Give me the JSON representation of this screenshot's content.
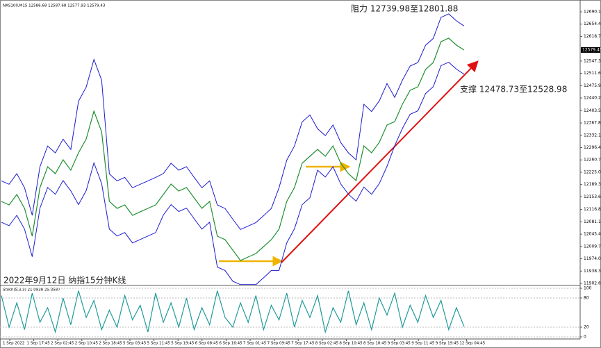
{
  "chart_data": [
    {
      "type": "line",
      "header": "NAS100,M15  12586.68 12587.68 12577.93 12579.43",
      "annotations": [
        "阻力 12739.98至12801.88",
        "支撑 12478.73至12528.98",
        "2022年9月12日 纳指15分钟K线"
      ],
      "ylim": [
        11898.6,
        12714.3
      ],
      "yticks": [
        12690.15,
        12654.45,
        12618.75,
        12547.35,
        12511.65,
        12475.95,
        12440.25,
        12403.55,
        12367.85,
        {
          "value": 12332.1,
          "label": "12332.10"
        },
        {
          "value": 12296.4,
          "label": "12296.40"
        },
        {
          "value": 12260.7,
          "label": "12260.70"
        },
        {
          "value": 12225,
          "label": "12225.00"
        },
        {
          "value": 12189.3,
          "label": "12189.30"
        },
        {
          "value": 12153.6,
          "label": "12153.60"
        },
        12116.85,
        12081.15,
        12045.45,
        12009.75,
        11974.05,
        11938.35,
        11902.65
      ],
      "last_price": 12579.43,
      "series": [
        {
          "color": "#1f8f2f",
          "values": [
            12140.3,
            12130.3,
            12160.5,
            12120.2,
            12039.6,
            12180.6,
            12241.0,
            12220.9,
            12261.2,
            12231.0,
            12281.3,
            12321.6,
            12402.2,
            12341.8,
            12140.3,
            12120.2,
            12130.3,
            12100.1,
            12110.2,
            12120.2,
            12130.3,
            12160.5,
            12190.7,
            12170.5,
            12180.6,
            12150.4,
            12120.2,
            12140.3,
            12039.6,
            12029.6,
            11999.4,
            11969.1,
            11979.2,
            11989.3,
            12009.4,
            12029.6,
            12059.8,
            12140.3,
            12180.6,
            12251.1,
            12271.3,
            12291.4,
            12271.3,
            12301.5,
            12251.1,
            12220.9,
            12200.8,
            12301.5,
            12281.3,
            12311.5,
            12361.9,
            12372.0,
            12422.3,
            12462.6,
            12472.7,
            12523.0,
            12543.1,
            12603.6,
            12613.6,
            12593.5,
            12579.4
          ]
        },
        {
          "color": "#1b1bd0",
          "values": [
            12200,
            12190,
            12221,
            12180,
            12100,
            12241,
            12301,
            12281,
            12321,
            12291,
            12431,
            12472,
            12552,
            12492,
            12220,
            12200,
            12210,
            12180,
            12190,
            12200,
            12210,
            12221,
            12251,
            12231,
            12241,
            12210,
            12180,
            12200,
            12130,
            12120,
            12089,
            12059,
            12069,
            12079,
            12099,
            12120,
            12180,
            12260,
            12301,
            12371,
            12391,
            12351,
            12331,
            12362,
            12311,
            12281,
            12261,
            12422,
            12401,
            12432,
            12482,
            12442,
            12492,
            12533,
            12543,
            12593,
            12613,
            12674,
            12684,
            12664,
            12649
          ]
        },
        {
          "color": "#1b1bd0",
          "values": [
            12080,
            12070,
            12100,
            12060,
            11980,
            12121,
            12181,
            12161,
            12201,
            12171,
            12131,
            12172,
            12252,
            12192,
            12060,
            12040,
            12050,
            12020,
            12030,
            12040,
            12050,
            12101,
            12131,
            12111,
            12121,
            12090,
            12060,
            12080,
            11950,
            11940,
            11909,
            11899,
            11899,
            11899,
            11919,
            11940,
            11940,
            12020,
            12061,
            12131,
            12151,
            12231,
            12211,
            12241,
            12191,
            12161,
            12141,
            12182,
            12161,
            12192,
            12242,
            12302,
            12352,
            12393,
            12403,
            12453,
            12473,
            12534,
            12544,
            12524,
            12509
          ]
        }
      ]
    },
    {
      "type": "line",
      "header": "Stoch(5,3,3) 21.0938 25.3587",
      "ylim": [
        -4.3,
        104.3
      ],
      "yticks": [
        100,
        80,
        20,
        0
      ],
      "x_axis_labels": [
        "1 Sep 2022",
        "1 Sep 17:45",
        "2 Sep 02:45",
        "2 Sep 10:45",
        "2 Sep 18:45",
        "5 Sep 03:45",
        "5 Sep 11:45",
        "5 Sep 19:45",
        "6 Sep 08:45",
        "6 Sep 16:45",
        "7 Sep 01:45",
        "7 Sep 09:45",
        "7 Sep 17:45",
        "8 Sep 02:45",
        "8 Sep 10:45",
        "8 Sep 18:45",
        "9 Sep 03:45",
        "9 Sep 11:45",
        "9 Sep 19:45",
        "12 Sep 04:45"
      ],
      "series": [
        {
          "color": "#1f9a9a",
          "values": [
            85,
            20,
            70,
            15,
            90,
            30,
            60,
            10,
            80,
            25,
            95,
            40,
            75,
            15,
            55,
            20,
            85,
            35,
            65,
            10,
            90,
            30,
            70,
            20,
            80,
            15,
            60,
            25,
            95,
            40,
            20,
            70,
            30,
            85,
            15,
            65,
            35,
            90,
            20,
            75,
            40,
            85,
            10,
            60,
            30,
            95,
            25,
            70,
            15,
            80,
            45,
            90,
            20,
            65,
            30,
            85,
            40,
            75,
            15,
            60,
            21.0938
          ]
        }
      ]
    }
  ]
}
